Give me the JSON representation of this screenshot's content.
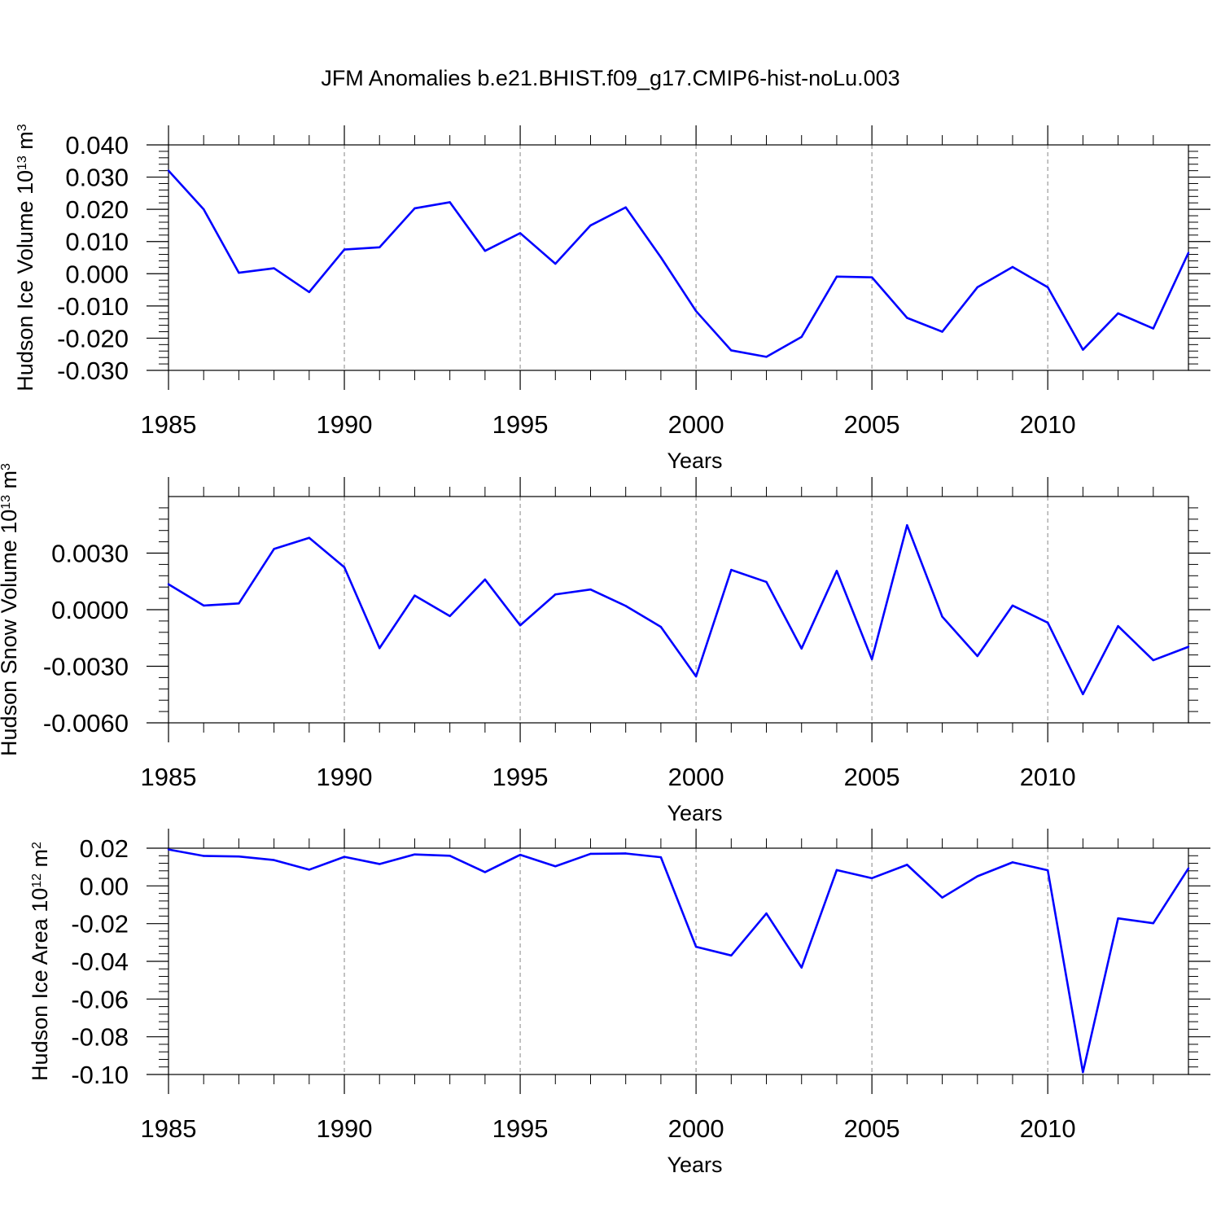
{
  "figure_title": "JFM Anomalies b.e21.BHIST.f09_g17.CMIP6-hist-noLu.003",
  "colors": {
    "line": "#0000ff",
    "axis": "#000000",
    "grid": "#9a9a9a",
    "background": "#ffffff"
  },
  "chart_data": [
    {
      "type": "line",
      "title": "JFM Anomalies b.e21.BHIST.f09_g17.CMIP6-hist-noLu.003",
      "xlabel": "Years",
      "ylabel": {
        "text": "Hudson Ice Volume 10",
        "exp": "13",
        "unit": " m",
        "unit_exp": "3"
      },
      "xlim": [
        1985,
        2014
      ],
      "ylim": [
        -0.03,
        0.04
      ],
      "yticks": [
        -0.03,
        -0.02,
        -0.01,
        0.0,
        0.01,
        0.02,
        0.03,
        0.04
      ],
      "yticklabels": [
        "-0.030",
        "-0.020",
        "-0.010",
        "0.000",
        "0.010",
        "0.020",
        "0.030",
        "0.040"
      ],
      "yminor": 0.002,
      "xticks": [
        1985,
        1990,
        1995,
        2000,
        2005,
        2010
      ],
      "xticklabels": [
        "1985",
        "1990",
        "1995",
        "2000",
        "2005",
        "2010"
      ],
      "grid": "vertical dashed at major x ticks",
      "x": [
        1985,
        1986,
        1987,
        1988,
        1989,
        1990,
        1991,
        1992,
        1993,
        1994,
        1995,
        1996,
        1997,
        1998,
        1999,
        2000,
        2001,
        2002,
        2003,
        2004,
        2005,
        2006,
        2007,
        2008,
        2009,
        2010,
        2011,
        2012,
        2013,
        2014
      ],
      "series": [
        {
          "name": "Hudson Ice Volume",
          "values": [
            0.032,
            0.02,
            0.0003,
            0.0017,
            -0.0057,
            0.0075,
            0.0082,
            0.0203,
            0.0222,
            0.0071,
            0.0126,
            0.0031,
            0.015,
            0.0206,
            0.0051,
            -0.0116,
            -0.0238,
            -0.0258,
            -0.0196,
            -0.0009,
            -0.0011,
            -0.0137,
            -0.018,
            -0.0042,
            0.0021,
            -0.0042,
            -0.0236,
            -0.0123,
            -0.017,
            0.0065
          ]
        }
      ]
    },
    {
      "type": "line",
      "xlabel": "Years",
      "ylabel": {
        "text": "Hudson Snow Volume 10",
        "exp": "13",
        "unit": " m",
        "unit_exp": "3"
      },
      "xlim": [
        1985,
        2014
      ],
      "ylim": [
        -0.006,
        0.006
      ],
      "yticks": [
        -0.006,
        -0.003,
        0.0,
        0.003
      ],
      "yticklabels": [
        "-0.0060",
        "-0.0030",
        "0.0000",
        "0.0030"
      ],
      "yminor": 0.0006,
      "xticks": [
        1985,
        1990,
        1995,
        2000,
        2005,
        2010
      ],
      "xticklabels": [
        "1985",
        "1990",
        "1995",
        "2000",
        "2005",
        "2010"
      ],
      "grid": "vertical dashed at major x ticks",
      "x": [
        1985,
        1986,
        1987,
        1988,
        1989,
        1990,
        1991,
        1992,
        1993,
        1994,
        1995,
        1996,
        1997,
        1998,
        1999,
        2000,
        2001,
        2002,
        2003,
        2004,
        2005,
        2006,
        2007,
        2008,
        2009,
        2010,
        2011,
        2012,
        2013,
        2014
      ],
      "series": [
        {
          "name": "Hudson Snow Volume",
          "values": [
            0.00135,
            0.00022,
            0.00033,
            0.00322,
            0.00381,
            0.00225,
            -0.00204,
            0.00075,
            -0.00034,
            0.0016,
            -0.00083,
            0.00081,
            0.00107,
            0.0002,
            -0.00091,
            -0.00354,
            0.00211,
            0.00147,
            -0.00206,
            0.00206,
            -0.00263,
            0.00448,
            -0.00037,
            -0.00246,
            0.00022,
            -0.00069,
            -0.00448,
            -0.00087,
            -0.00268,
            -0.00197
          ]
        }
      ]
    },
    {
      "type": "line",
      "xlabel": "Years",
      "ylabel": {
        "text": "Hudson Ice Area 10",
        "exp": "12",
        "unit": " m",
        "unit_exp": "2"
      },
      "xlim": [
        1985,
        2014
      ],
      "ylim": [
        -0.1,
        0.02
      ],
      "yticks": [
        -0.1,
        -0.08,
        -0.06,
        -0.04,
        -0.02,
        0.0,
        0.02
      ],
      "yticklabels": [
        "-0.10",
        "-0.08",
        "-0.06",
        "-0.04",
        "-0.02",
        "0.00",
        "0.02"
      ],
      "yminor": 0.004,
      "xticks": [
        1985,
        1990,
        1995,
        2000,
        2005,
        2010
      ],
      "xticklabels": [
        "1985",
        "1990",
        "1995",
        "2000",
        "2005",
        "2010"
      ],
      "grid": "vertical dashed at major x ticks",
      "x": [
        1985,
        1986,
        1987,
        1988,
        1989,
        1990,
        1991,
        1992,
        1993,
        1994,
        1995,
        1996,
        1997,
        1998,
        1999,
        2000,
        2001,
        2002,
        2003,
        2004,
        2005,
        2006,
        2007,
        2008,
        2009,
        2010,
        2011,
        2012,
        2013,
        2014
      ],
      "series": [
        {
          "name": "Hudson Ice Area",
          "values": [
            0.0193,
            0.0159,
            0.0156,
            0.0137,
            0.0086,
            0.0154,
            0.0116,
            0.0167,
            0.016,
            0.0073,
            0.0165,
            0.0104,
            0.017,
            0.0172,
            0.0152,
            -0.0323,
            -0.0369,
            -0.0146,
            -0.0433,
            0.0084,
            0.0041,
            0.0112,
            -0.0062,
            0.0051,
            0.0125,
            0.0083,
            -0.0988,
            -0.0172,
            -0.0198,
            0.0093
          ]
        }
      ]
    }
  ]
}
